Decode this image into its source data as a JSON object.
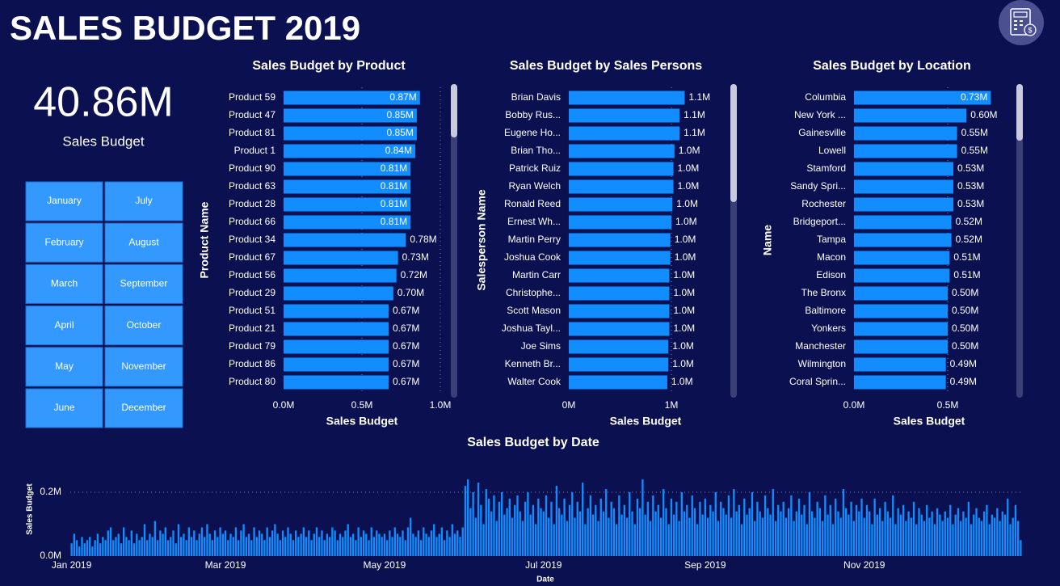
{
  "header": {
    "title": "SALES BUDGET 2019"
  },
  "kpi": {
    "value": "40.86M",
    "label": "Sales Budget"
  },
  "slicer": {
    "months": [
      "January",
      "February",
      "March",
      "April",
      "May",
      "June",
      "July",
      "August",
      "September",
      "October",
      "November",
      "December"
    ]
  },
  "chart_data": [
    {
      "type": "barh",
      "title": "Sales Budget by Product",
      "xlabel": "Sales Budget",
      "ylabel": "Product Name",
      "categories": [
        "Product 59",
        "Product 47",
        "Product 81",
        "Product 1",
        "Product 90",
        "Product 63",
        "Product 28",
        "Product 66",
        "Product 34",
        "Product 67",
        "Product 56",
        "Product 29",
        "Product 51",
        "Product 21",
        "Product 79",
        "Product 86",
        "Product 80"
      ],
      "values": [
        0.87,
        0.85,
        0.85,
        0.84,
        0.81,
        0.81,
        0.81,
        0.81,
        0.78,
        0.73,
        0.72,
        0.7,
        0.67,
        0.67,
        0.67,
        0.67,
        0.67
      ],
      "value_labels": [
        "0.87M",
        "0.85M",
        "0.85M",
        "0.84M",
        "0.81M",
        "0.81M",
        "0.81M",
        "0.81M",
        "0.78M",
        "0.73M",
        "0.72M",
        "0.70M",
        "0.67M",
        "0.67M",
        "0.67M",
        "0.67M",
        "0.67M"
      ],
      "color": "#118dff",
      "xlim": [
        0,
        1.0
      ],
      "xticks": [
        {
          "value": 0,
          "label": "0.0M"
        },
        {
          "value": 0.5,
          "label": "0.5M"
        },
        {
          "value": 1.0,
          "label": "1.0M"
        }
      ],
      "grid": true
    },
    {
      "type": "barh",
      "title": "Sales Budget by Sales Persons",
      "xlabel": "Sales Budget",
      "ylabel": "Salesperson Name",
      "categories": [
        "Brian Davis",
        "Bobby Rus...",
        "Eugene Ho...",
        "Brian Tho...",
        "Patrick Ruiz",
        "Ryan Welch",
        "Ronald Reed",
        "Ernest Wh...",
        "Martin Perry",
        "Joshua Cook",
        "Martin Carr",
        "Christophe...",
        "Scott Mason",
        "Joshua Tayl...",
        "Joe Sims",
        "Kenneth Br...",
        "Walter Cook"
      ],
      "values": [
        1.13,
        1.08,
        1.08,
        1.03,
        1.02,
        1.02,
        1.01,
        1.0,
        0.99,
        0.99,
        0.98,
        0.98,
        0.98,
        0.98,
        0.97,
        0.97,
        0.96
      ],
      "value_labels": [
        "1.1M",
        "1.1M",
        "1.1M",
        "1.0M",
        "1.0M",
        "1.0M",
        "1.0M",
        "1.0M",
        "1.0M",
        "1.0M",
        "1.0M",
        "1.0M",
        "1.0M",
        "1.0M",
        "1.0M",
        "1.0M",
        "1.0M"
      ],
      "color": "#118dff",
      "xlim": [
        0,
        1.5
      ],
      "xticks": [
        {
          "value": 0,
          "label": "0M"
        },
        {
          "value": 1,
          "label": "1M"
        }
      ],
      "grid": true
    },
    {
      "type": "barh",
      "title": "Sales Budget by Location",
      "xlabel": "Sales Budget",
      "ylabel": "Name",
      "categories": [
        "Columbia",
        "New York ...",
        "Gainesville",
        "Lowell",
        "Stamford",
        "Sandy Spri...",
        "Rochester",
        "Bridgeport...",
        "Tampa",
        "Macon",
        "Edison",
        "The Bronx",
        "Baltimore",
        "Yonkers",
        "Manchester",
        "Wilmington",
        "Coral Sprin..."
      ],
      "values": [
        0.73,
        0.6,
        0.55,
        0.55,
        0.53,
        0.53,
        0.53,
        0.52,
        0.52,
        0.51,
        0.51,
        0.5,
        0.5,
        0.5,
        0.5,
        0.49,
        0.49
      ],
      "value_labels": [
        "0.73M",
        "0.60M",
        "0.55M",
        "0.55M",
        "0.53M",
        "0.53M",
        "0.53M",
        "0.52M",
        "0.52M",
        "0.51M",
        "0.51M",
        "0.50M",
        "0.50M",
        "0.50M",
        "0.50M",
        "0.49M",
        "0.49M"
      ],
      "color": "#118dff",
      "xlim": [
        0,
        0.8
      ],
      "xticks": [
        {
          "value": 0,
          "label": "0.0M"
        },
        {
          "value": 0.5,
          "label": "0.5M"
        }
      ],
      "grid": true
    },
    {
      "type": "bar",
      "title": "Sales Budget by Date",
      "xlabel": "Date",
      "ylabel": "Sales Budget",
      "categories": [
        "Jan 2019",
        null,
        null,
        null,
        null,
        null,
        null,
        null,
        null,
        null,
        null,
        null,
        null,
        null,
        null,
        null,
        null,
        null,
        null,
        null,
        null,
        null,
        null,
        null,
        null,
        null,
        null,
        null,
        null,
        null,
        null,
        null,
        null,
        null,
        null,
        null,
        null,
        null,
        null,
        null,
        null,
        null,
        null,
        null,
        null,
        null,
        null,
        null,
        null,
        null,
        null,
        null,
        null,
        null,
        null,
        null,
        null,
        null,
        null,
        "Mar 2019",
        null,
        null,
        null,
        null,
        null,
        null,
        null,
        null,
        null,
        null,
        null,
        null,
        null,
        null,
        null,
        null,
        null,
        null,
        null,
        null,
        null,
        null,
        null,
        null,
        null,
        null,
        null,
        null,
        null,
        null,
        null,
        null,
        null,
        null,
        null,
        null,
        null,
        null,
        null,
        null,
        null,
        null,
        null,
        null,
        null,
        null,
        null,
        null,
        null,
        null,
        null,
        null,
        null,
        null,
        null,
        null,
        null,
        null,
        null,
        null,
        "May 2019",
        null,
        null,
        null,
        null,
        null,
        null,
        null,
        null,
        null,
        null,
        null,
        null,
        null,
        null,
        null,
        null,
        null,
        null,
        null,
        null,
        null,
        null,
        null,
        null,
        null,
        null,
        null,
        null,
        null,
        null,
        null,
        null,
        null,
        null,
        null,
        null,
        null,
        null,
        null,
        null,
        null,
        null,
        null,
        null,
        null,
        null,
        null,
        null,
        null,
        null,
        null,
        null,
        null,
        null,
        null,
        null,
        null,
        null,
        null,
        null,
        "Jul 2019",
        null,
        null,
        null,
        null,
        null,
        null,
        null,
        null,
        null,
        null,
        null,
        null,
        null,
        null,
        null,
        null,
        null,
        null,
        null,
        null,
        null,
        null,
        null,
        null,
        null,
        null,
        null,
        null,
        null,
        null,
        null,
        null,
        null,
        null,
        null,
        null,
        null,
        null,
        null,
        null,
        null,
        null,
        null,
        null,
        null,
        null,
        null,
        null,
        null,
        null,
        null,
        null,
        null,
        null,
        null,
        null,
        null,
        null,
        null,
        null,
        null,
        "Sep 2019",
        null,
        null,
        null,
        null,
        null,
        null,
        null,
        null,
        null,
        null,
        null,
        null,
        null,
        null,
        null,
        null,
        null,
        null,
        null,
        null,
        null,
        null,
        null,
        null,
        null,
        null,
        null,
        null,
        null,
        null,
        null,
        null,
        null,
        null,
        null,
        null,
        null,
        null,
        null,
        null,
        null,
        null,
        null,
        null,
        null,
        null,
        null,
        null,
        null,
        null,
        null,
        null,
        null,
        null,
        null,
        null,
        null,
        null,
        null,
        null,
        "Nov 2019",
        null,
        null,
        null,
        null,
        null,
        null,
        null,
        null,
        null,
        null,
        null,
        null,
        null,
        null,
        null,
        null,
        null,
        null,
        null,
        null,
        null,
        null,
        null,
        null,
        null,
        null,
        null,
        null,
        null,
        null,
        null,
        null,
        null,
        null,
        null,
        null,
        null,
        null,
        null,
        null,
        null,
        null,
        null,
        null,
        null,
        null,
        null,
        null,
        null,
        null,
        null,
        null,
        null,
        null,
        null,
        null,
        null,
        null,
        null,
        null
      ],
      "values": [
        0.04,
        0.07,
        0.05,
        0.03,
        0.06,
        0.04,
        0.05,
        0.06,
        0.03,
        0.05,
        0.07,
        0.04,
        0.06,
        0.05,
        0.08,
        0.09,
        0.05,
        0.06,
        0.07,
        0.04,
        0.09,
        0.06,
        0.05,
        0.08,
        0.04,
        0.07,
        0.05,
        0.06,
        0.1,
        0.05,
        0.07,
        0.06,
        0.11,
        0.05,
        0.08,
        0.07,
        0.09,
        0.05,
        0.06,
        0.08,
        0.04,
        0.1,
        0.06,
        0.07,
        0.05,
        0.09,
        0.06,
        0.08,
        0.05,
        0.07,
        0.09,
        0.06,
        0.1,
        0.07,
        0.05,
        0.08,
        0.06,
        0.09,
        0.07,
        0.08,
        0.05,
        0.07,
        0.06,
        0.09,
        0.05,
        0.08,
        0.1,
        0.06,
        0.07,
        0.05,
        0.09,
        0.06,
        0.08,
        0.07,
        0.05,
        0.09,
        0.06,
        0.08,
        0.1,
        0.07,
        0.05,
        0.08,
        0.06,
        0.09,
        0.07,
        0.05,
        0.08,
        0.06,
        0.07,
        0.09,
        0.06,
        0.08,
        0.05,
        0.07,
        0.09,
        0.06,
        0.08,
        0.05,
        0.07,
        0.06,
        0.09,
        0.08,
        0.05,
        0.07,
        0.06,
        0.08,
        0.1,
        0.06,
        0.07,
        0.05,
        0.09,
        0.06,
        0.08,
        0.07,
        0.05,
        0.09,
        0.06,
        0.08,
        0.07,
        0.06,
        0.07,
        0.05,
        0.08,
        0.06,
        0.09,
        0.07,
        0.06,
        0.08,
        0.05,
        0.09,
        0.12,
        0.07,
        0.06,
        0.08,
        0.05,
        0.09,
        0.07,
        0.06,
        0.08,
        0.1,
        0.06,
        0.07,
        0.09,
        0.05,
        0.08,
        0.06,
        0.1,
        0.07,
        0.08,
        0.06,
        0.09,
        0.22,
        0.24,
        0.15,
        0.2,
        0.12,
        0.23,
        0.16,
        0.1,
        0.21,
        0.18,
        0.14,
        0.19,
        0.11,
        0.17,
        0.2,
        0.13,
        0.15,
        0.18,
        0.12,
        0.16,
        0.19,
        0.14,
        0.11,
        0.17,
        0.2,
        0.13,
        0.16,
        0.1,
        0.18,
        0.15,
        0.14,
        0.19,
        0.12,
        0.17,
        0.1,
        0.22,
        0.15,
        0.13,
        0.18,
        0.11,
        0.16,
        0.2,
        0.12,
        0.17,
        0.14,
        0.23,
        0.1,
        0.15,
        0.19,
        0.13,
        0.16,
        0.11,
        0.18,
        0.14,
        0.21,
        0.12,
        0.17,
        0.15,
        0.1,
        0.19,
        0.13,
        0.16,
        0.12,
        0.2,
        0.14,
        0.1,
        0.18,
        0.15,
        0.24,
        0.13,
        0.17,
        0.11,
        0.19,
        0.14,
        0.16,
        0.12,
        0.21,
        0.15,
        0.1,
        0.18,
        0.13,
        0.17,
        0.11,
        0.2,
        0.14,
        0.16,
        0.12,
        0.19,
        0.15,
        0.1,
        0.17,
        0.13,
        0.18,
        0.12,
        0.16,
        0.14,
        0.2,
        0.11,
        0.17,
        0.15,
        0.13,
        0.19,
        0.12,
        0.21,
        0.14,
        0.16,
        0.1,
        0.18,
        0.13,
        0.15,
        0.2,
        0.11,
        0.17,
        0.14,
        0.12,
        0.19,
        0.15,
        0.13,
        0.21,
        0.11,
        0.16,
        0.14,
        0.17,
        0.12,
        0.15,
        0.19,
        0.11,
        0.14,
        0.18,
        0.13,
        0.16,
        0.1,
        0.2,
        0.14,
        0.12,
        0.17,
        0.15,
        0.11,
        0.19,
        0.13,
        0.16,
        0.1,
        0.18,
        0.14,
        0.12,
        0.21,
        0.15,
        0.13,
        0.17,
        0.11,
        0.16,
        0.14,
        0.18,
        0.12,
        0.16,
        0.14,
        0.1,
        0.18,
        0.13,
        0.15,
        0.11,
        0.17,
        0.14,
        0.12,
        0.19,
        0.1,
        0.15,
        0.13,
        0.16,
        0.11,
        0.14,
        0.12,
        0.17,
        0.1,
        0.15,
        0.13,
        0.11,
        0.16,
        0.12,
        0.14,
        0.1,
        0.15,
        0.13,
        0.11,
        0.14,
        0.12,
        0.16,
        0.1,
        0.13,
        0.15,
        0.11,
        0.14,
        0.12,
        0.17,
        0.1,
        0.13,
        0.15,
        0.12,
        0.11,
        0.14,
        0.16,
        0.1,
        0.13,
        0.12,
        0.15,
        0.11,
        0.14,
        0.13,
        0.18,
        0.1,
        0.12,
        0.16,
        0.11,
        0.05
      ],
      "color": "#118dff",
      "ylim": [
        0,
        0.24
      ],
      "yticks": [
        {
          "value": 0,
          "label": "0.0M"
        },
        {
          "value": 0.2,
          "label": "0.2M"
        }
      ],
      "grid": true
    }
  ]
}
